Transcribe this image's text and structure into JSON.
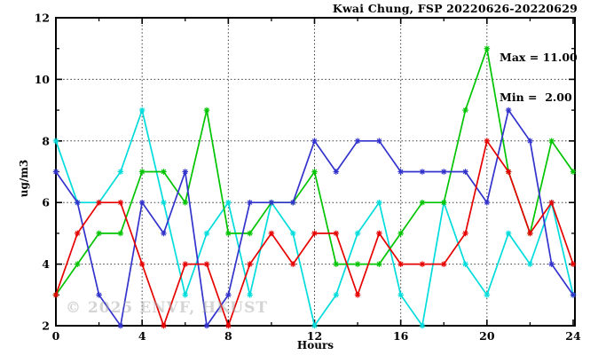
{
  "title": "Kwai Chung, FSP 20220626-20220629",
  "stats": {
    "max_label": "Max = 11.00",
    "min_label": "Min =  2.00"
  },
  "axes": {
    "xlabel": "Hours",
    "ylabel": "ug/m3"
  },
  "watermark": "© 2025 ENVF, HKUST",
  "chart_data": {
    "type": "line",
    "title": "Kwai Chung, FSP 20220626-20220629",
    "xlabel": "Hours",
    "ylabel": "ug/m3",
    "xlim": [
      0,
      24
    ],
    "ylim": [
      2,
      12
    ],
    "x_major_ticks": [
      0,
      4,
      8,
      12,
      16,
      20,
      24
    ],
    "x_minor_ticks": [
      2,
      6,
      10,
      14,
      18,
      22
    ],
    "y_major_ticks": [
      2,
      4,
      6,
      8,
      10,
      12
    ],
    "y_minor_ticks": [
      3,
      5,
      7,
      9,
      11
    ],
    "x_gridlines": [
      4,
      8,
      12,
      16,
      20
    ],
    "y_gridlines": [
      4,
      6,
      8,
      10
    ],
    "grid": "dotted",
    "legend": "none",
    "marker": "asterisk",
    "max": 11.0,
    "min": 2.0,
    "x": [
      0,
      1,
      2,
      3,
      4,
      5,
      6,
      7,
      8,
      9,
      10,
      11,
      12,
      13,
      14,
      15,
      16,
      17,
      18,
      19,
      20,
      21,
      22,
      23,
      24
    ],
    "series": [
      {
        "name": "series-cyan",
        "color": "#00dcdc",
        "values": [
          8,
          6,
          6,
          7,
          9,
          6,
          3,
          5,
          6,
          3,
          6,
          5,
          2,
          3,
          5,
          6,
          3,
          2,
          6,
          4,
          3,
          5,
          4,
          6,
          3
        ]
      },
      {
        "name": "series-green",
        "color": "#00c400",
        "values": [
          3,
          4,
          5,
          5,
          7,
          7,
          6,
          9,
          5,
          5,
          6,
          6,
          7,
          4,
          4,
          4,
          5,
          6,
          6,
          9,
          11,
          7,
          5,
          8,
          7
        ]
      },
      {
        "name": "series-blue",
        "color": "#3232cc",
        "values": [
          7,
          6,
          3,
          2,
          6,
          5,
          7,
          2,
          3,
          6,
          6,
          6,
          8,
          7,
          8,
          8,
          7,
          7,
          7,
          7,
          6,
          9,
          8,
          4,
          3
        ]
      },
      {
        "name": "series-red",
        "color": "#e60000",
        "values": [
          3,
          5,
          6,
          6,
          4,
          2,
          4,
          4,
          2,
          4,
          5,
          4,
          5,
          5,
          3,
          5,
          4,
          4,
          4,
          5,
          8,
          7,
          5,
          6,
          4
        ]
      }
    ]
  }
}
